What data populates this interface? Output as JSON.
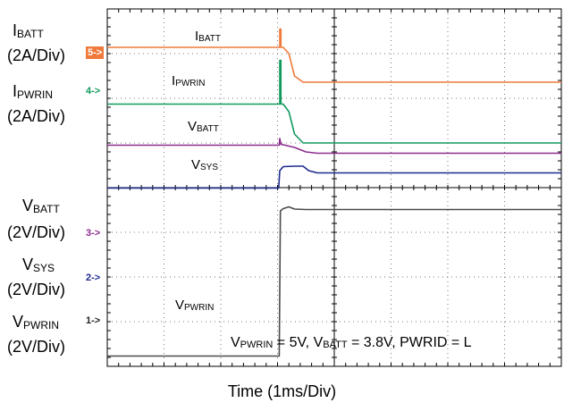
{
  "chart_data": {
    "type": "line",
    "title": "",
    "xlabel": "Time (1ms/Div)",
    "divisions": {
      "x": 8,
      "y": 8
    },
    "annotation": {
      "parts": [
        {
          "t": "V"
        },
        {
          "s": "PWRIN"
        },
        {
          "t": " = 5V, V"
        },
        {
          "s": "BATT"
        },
        {
          "t": " = 3.8V, PWRID = L"
        }
      ]
    },
    "channels": [
      {
        "name": "IBATT",
        "marker": "5->",
        "color": "#f07a3c",
        "marker_style": "filled",
        "left_label": {
          "main": "I",
          "sub": "BATT"
        },
        "scale": "(2A/Div)",
        "trace_label": {
          "main": "I",
          "sub": "BATT"
        },
        "points": [
          [
            0,
            3.14
          ],
          [
            3.04,
            3.14
          ],
          [
            3.04,
            3.55
          ],
          [
            3.06,
            3.55
          ],
          [
            3.06,
            3.14
          ],
          [
            3.1,
            3.14
          ],
          [
            3.2,
            3.0
          ],
          [
            3.3,
            2.5
          ],
          [
            3.45,
            2.36
          ],
          [
            8,
            2.36
          ]
        ]
      },
      {
        "name": "IPWRIN",
        "marker": "4->",
        "color": "#129a5e",
        "marker_style": "text",
        "left_label": {
          "main": "I",
          "sub": "PWRIN"
        },
        "scale": "(2A/Div)",
        "trace_label": {
          "main": "I",
          "sub": "PWRIN"
        },
        "points": [
          [
            0,
            1.87
          ],
          [
            3.04,
            1.87
          ],
          [
            3.04,
            2.85
          ],
          [
            3.06,
            2.85
          ],
          [
            3.06,
            1.87
          ],
          [
            3.1,
            1.87
          ],
          [
            3.2,
            1.7
          ],
          [
            3.3,
            1.2
          ],
          [
            3.45,
            1.0
          ],
          [
            8,
            1.0
          ]
        ]
      },
      {
        "name": "VBATT",
        "marker": "3->",
        "color": "#8c2c8e",
        "marker_style": "text",
        "left_label": {
          "main": "V",
          "sub": "BATT"
        },
        "scale": "(2V/Div)",
        "trace_label": {
          "main": "V",
          "sub": "BATT"
        },
        "points": [
          [
            0,
            0.95
          ],
          [
            3.03,
            0.95
          ],
          [
            3.04,
            1.1
          ],
          [
            3.06,
            0.97
          ],
          [
            3.1,
            0.96
          ],
          [
            3.3,
            0.9
          ],
          [
            3.5,
            0.8
          ],
          [
            3.7,
            0.77
          ],
          [
            8,
            0.77
          ]
        ]
      },
      {
        "name": "VSYS",
        "marker": "2->",
        "color": "#1c2a8c",
        "marker_style": "text",
        "left_label": {
          "main": "V",
          "sub": "SYS"
        },
        "scale": "(2V/Div)",
        "trace_label": {
          "main": "V",
          "sub": "SYS"
        },
        "points": [
          [
            0,
            -0.01
          ],
          [
            3.02,
            -0.01
          ],
          [
            3.04,
            0.38
          ],
          [
            3.1,
            0.47
          ],
          [
            3.3,
            0.48
          ],
          [
            3.45,
            0.48
          ],
          [
            3.55,
            0.38
          ],
          [
            3.7,
            0.33
          ],
          [
            8,
            0.33
          ]
        ]
      },
      {
        "name": "VPWRIN",
        "marker": "1->",
        "color": "#4a4a4a",
        "marker_style": "text",
        "left_label": {
          "main": "V",
          "sub": "PWRIN"
        },
        "scale": "(2V/Div)",
        "trace_label": {
          "main": "V",
          "sub": "PWRIN"
        },
        "points": [
          [
            0,
            -3.77
          ],
          [
            3.03,
            -3.77
          ],
          [
            3.05,
            -0.52
          ],
          [
            3.1,
            -0.47
          ],
          [
            3.2,
            -0.43
          ],
          [
            3.3,
            -0.48
          ],
          [
            3.5,
            -0.49
          ],
          [
            8,
            -0.49
          ]
        ]
      }
    ]
  }
}
